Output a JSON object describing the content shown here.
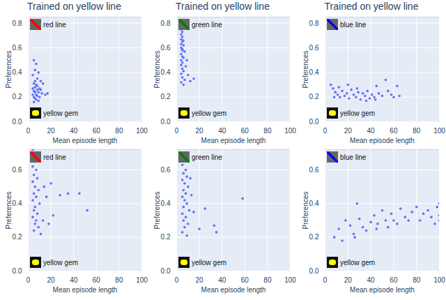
{
  "chart_data": [
    {
      "type": "scatter",
      "title": "Trained on yellow line",
      "x_label": "Mean episode length",
      "y_label": "Preferences",
      "xlim": [
        0,
        100
      ],
      "xticks": [
        0,
        20,
        40,
        60,
        80,
        100
      ],
      "ylim": [
        0,
        0.85
      ],
      "yticks": [
        0,
        0.2,
        0.4,
        0.6,
        0.8
      ],
      "grid": true,
      "color": "#636efa",
      "annotations": [
        "red line",
        "yellow gem"
      ],
      "x": [
        5,
        7,
        6,
        9,
        4,
        8,
        11,
        5,
        7,
        6,
        10,
        4,
        8,
        5,
        9,
        6,
        12,
        7,
        4,
        15,
        8,
        5,
        10,
        6,
        17,
        7,
        9,
        5,
        13,
        6,
        8,
        11
      ],
      "values": [
        0.5,
        0.47,
        0.42,
        0.4,
        0.38,
        0.35,
        0.33,
        0.31,
        0.3,
        0.28,
        0.27,
        0.27,
        0.26,
        0.25,
        0.24,
        0.24,
        0.23,
        0.22,
        0.22,
        0.22,
        0.21,
        0.2,
        0.2,
        0.19,
        0.23,
        0.18,
        0.17,
        0.16,
        0.31,
        0.33,
        0.29,
        0.26
      ]
    },
    {
      "type": "scatter",
      "title": "Trained on yellow line",
      "x_label": "Mean episode length",
      "y_label": "Preferences",
      "xlim": [
        0,
        100
      ],
      "xticks": [
        0,
        20,
        40,
        60,
        80,
        100
      ],
      "ylim": [
        0,
        0.85
      ],
      "yticks": [
        0,
        0.2,
        0.4,
        0.6,
        0.8
      ],
      "grid": true,
      "color": "#636efa",
      "annotations": [
        "green line",
        "yellow gem"
      ],
      "x": [
        4,
        4,
        5,
        4,
        5,
        4,
        5,
        4,
        6,
        4,
        5,
        7,
        4,
        5,
        6,
        4,
        9,
        5,
        4,
        8,
        5,
        6,
        4,
        10,
        5,
        7,
        15,
        4,
        6,
        12,
        5,
        6
      ],
      "values": [
        0.78,
        0.75,
        0.73,
        0.71,
        0.69,
        0.67,
        0.65,
        0.63,
        0.62,
        0.6,
        0.58,
        0.57,
        0.55,
        0.53,
        0.52,
        0.5,
        0.5,
        0.48,
        0.46,
        0.45,
        0.43,
        0.41,
        0.39,
        0.38,
        0.36,
        0.34,
        0.35,
        0.32,
        0.3,
        0.33,
        0.59,
        0.66
      ]
    },
    {
      "type": "scatter",
      "title": "Trained on yellow line",
      "x_label": "Mean episode length",
      "y_label": "Preferences",
      "xlim": [
        0,
        100
      ],
      "xticks": [
        0,
        20,
        40,
        60,
        80,
        100
      ],
      "ylim": [
        0,
        0.85
      ],
      "yticks": [
        0,
        0.2,
        0.4,
        0.6,
        0.8
      ],
      "grid": true,
      "color": "#636efa",
      "annotations": [
        "blue line",
        "yellow gem"
      ],
      "x": [
        5,
        7,
        9,
        11,
        13,
        15,
        17,
        19,
        21,
        23,
        25,
        27,
        29,
        31,
        33,
        35,
        37,
        39,
        41,
        43,
        45,
        47,
        50,
        53,
        55,
        58,
        60,
        63,
        65,
        8,
        12,
        20,
        28,
        36,
        44
      ],
      "values": [
        0.3,
        0.27,
        0.24,
        0.22,
        0.2,
        0.25,
        0.21,
        0.23,
        0.19,
        0.26,
        0.22,
        0.2,
        0.24,
        0.18,
        0.23,
        0.21,
        0.25,
        0.19,
        0.22,
        0.2,
        0.29,
        0.23,
        0.21,
        0.34,
        0.25,
        0.22,
        0.2,
        0.29,
        0.21,
        0.2,
        0.28,
        0.3,
        0.27,
        0.17,
        0.18
      ]
    },
    {
      "type": "scatter",
      "x_label": "Mean episode length",
      "y_label": "Preferences",
      "xlim": [
        0,
        100
      ],
      "xticks": [
        0,
        20,
        40,
        60,
        80,
        100
      ],
      "ylim": [
        0,
        0.72
      ],
      "yticks": [
        0,
        0.2,
        0.4,
        0.6
      ],
      "grid": true,
      "color": "#636efa",
      "annotations": [
        "red line",
        "yellow gem"
      ],
      "x": [
        4,
        5,
        6,
        4,
        7,
        5,
        8,
        4,
        6,
        9,
        5,
        7,
        4,
        10,
        6,
        5,
        8,
        4,
        7,
        6,
        9,
        5,
        11,
        14,
        16,
        20,
        22,
        28,
        35,
        45,
        52,
        13,
        18
      ],
      "values": [
        0.72,
        0.68,
        0.65,
        0.62,
        0.6,
        0.57,
        0.55,
        0.53,
        0.5,
        0.48,
        0.46,
        0.44,
        0.42,
        0.4,
        0.38,
        0.36,
        0.34,
        0.32,
        0.3,
        0.28,
        0.26,
        0.24,
        0.22,
        0.5,
        0.44,
        0.52,
        0.33,
        0.45,
        0.46,
        0.46,
        0.36,
        0.3,
        0.28
      ]
    },
    {
      "type": "scatter",
      "x_label": "Mean episode length",
      "y_label": "Preferences",
      "xlim": [
        0,
        100
      ],
      "xticks": [
        0,
        20,
        40,
        60,
        80,
        100
      ],
      "ylim": [
        0,
        0.72
      ],
      "yticks": [
        0,
        0.2,
        0.4,
        0.6
      ],
      "grid": true,
      "color": "#636efa",
      "annotations": [
        "green line",
        "yellow gem"
      ],
      "x": [
        5,
        6,
        7,
        5,
        8,
        6,
        9,
        5,
        7,
        10,
        6,
        8,
        5,
        7,
        9,
        6,
        11,
        5,
        8,
        6,
        10,
        7,
        5,
        9,
        13,
        15,
        20,
        25,
        33,
        35,
        58,
        12
      ],
      "values": [
        0.7,
        0.67,
        0.65,
        0.63,
        0.6,
        0.58,
        0.56,
        0.54,
        0.52,
        0.5,
        0.48,
        0.46,
        0.44,
        0.42,
        0.4,
        0.38,
        0.36,
        0.34,
        0.32,
        0.3,
        0.28,
        0.26,
        0.23,
        0.21,
        0.45,
        0.35,
        0.25,
        0.37,
        0.27,
        0.23,
        0.43,
        0.55
      ]
    },
    {
      "type": "scatter",
      "x_label": "Mean episode length",
      "y_label": "Preferences",
      "xlim": [
        0,
        100
      ],
      "xticks": [
        0,
        20,
        40,
        60,
        80,
        100
      ],
      "ylim": [
        0,
        0.72
      ],
      "yticks": [
        0,
        0.2,
        0.4,
        0.6
      ],
      "grid": true,
      "color": "#636efa",
      "annotations": [
        "blue line",
        "yellow gem"
      ],
      "x": [
        8,
        12,
        15,
        18,
        22,
        25,
        28,
        30,
        33,
        36,
        40,
        43,
        46,
        50,
        53,
        55,
        58,
        60,
        63,
        66,
        70,
        73,
        76,
        80,
        83,
        86,
        90,
        93,
        96,
        98,
        100,
        100,
        100,
        26,
        45
      ],
      "values": [
        0.2,
        0.25,
        0.18,
        0.3,
        0.27,
        0.22,
        0.4,
        0.31,
        0.26,
        0.24,
        0.29,
        0.33,
        0.28,
        0.36,
        0.3,
        0.26,
        0.34,
        0.3,
        0.28,
        0.37,
        0.32,
        0.3,
        0.35,
        0.38,
        0.3,
        0.34,
        0.36,
        0.32,
        0.28,
        0.38,
        0.4,
        0.33,
        0.3,
        0.2,
        0.25
      ]
    }
  ]
}
